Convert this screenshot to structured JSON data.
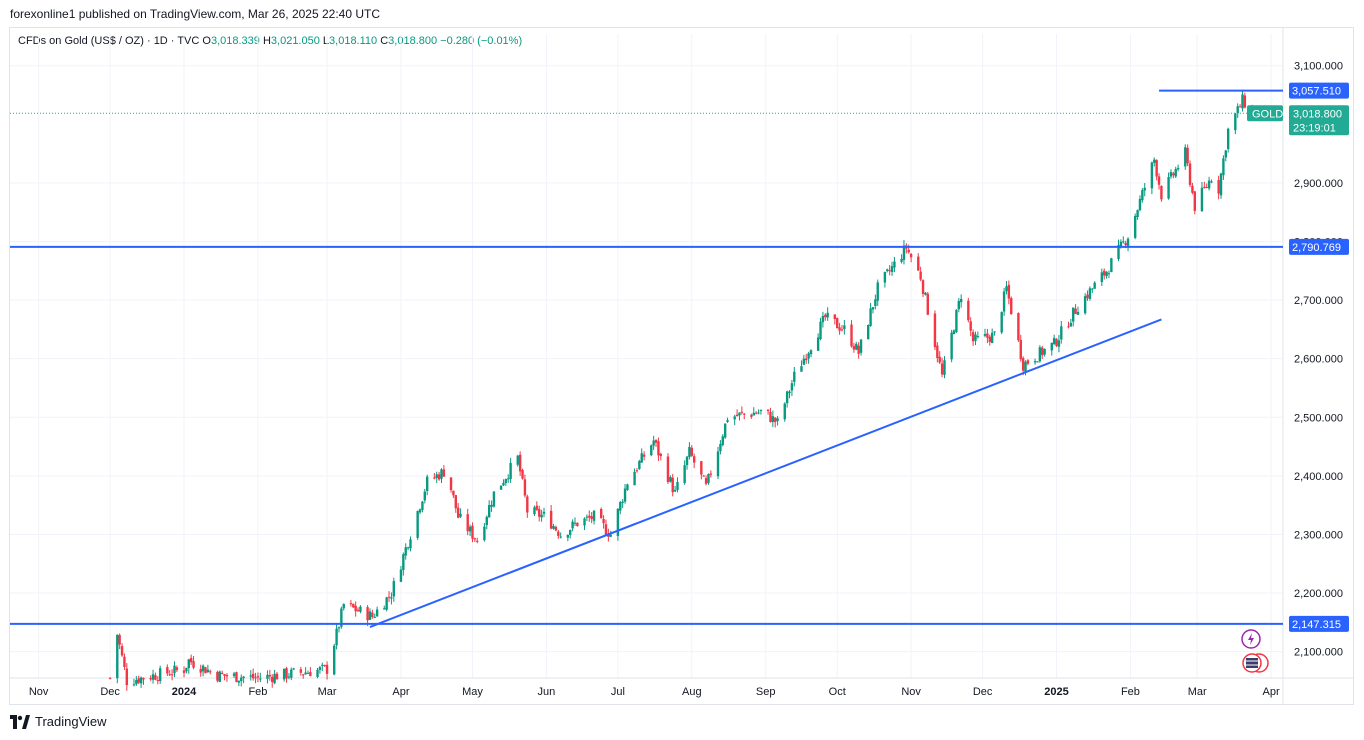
{
  "header": {
    "published": "forexonline1 published on TradingView.com, Mar 26, 2025 22:40 UTC"
  },
  "legend": {
    "symbol": "CFDs on Gold (US$ / OZ) · 1D · TVC",
    "o_label": "O",
    "o": "3,018.339",
    "h_label": "H",
    "h": "3,021.050",
    "l_label": "L",
    "l": "3,018.110",
    "c_label": "C",
    "c": "3,018.800",
    "change": "−0.280 (−0.01%)"
  },
  "footer": {
    "brand": "TradingView",
    "logo_icon": "tradingview-logo-icon"
  },
  "colors": {
    "up": "#089981",
    "down": "#f23645",
    "line": "#2962ff",
    "price_label": "#22ab94"
  },
  "chart_data": {
    "type": "candlestick",
    "symbol": "GOLD",
    "y_ticks": [
      "3,100.000",
      "2,900.000",
      "2,800.000",
      "2,700.000",
      "2,600.000",
      "2,500.000",
      "2,400.000",
      "2,300.000",
      "2,200.000",
      "2,100.000"
    ],
    "y_tick_values": [
      3100,
      2900,
      2800,
      2700,
      2600,
      2500,
      2400,
      2300,
      2200,
      2100
    ],
    "ylim": [
      2055,
      3120
    ],
    "x_ticks": [
      {
        "label": "Nov",
        "date": "2023-11-01",
        "bold": false
      },
      {
        "label": "Dec",
        "date": "2023-12-01",
        "bold": false
      },
      {
        "label": "2024",
        "date": "2024-01-01",
        "bold": true
      },
      {
        "label": "Feb",
        "date": "2024-02-01",
        "bold": false
      },
      {
        "label": "Mar",
        "date": "2024-03-01",
        "bold": false
      },
      {
        "label": "Apr",
        "date": "2024-04-01",
        "bold": false
      },
      {
        "label": "May",
        "date": "2024-05-01",
        "bold": false
      },
      {
        "label": "Jun",
        "date": "2024-06-01",
        "bold": false
      },
      {
        "label": "Jul",
        "date": "2024-07-01",
        "bold": false
      },
      {
        "label": "Aug",
        "date": "2024-08-01",
        "bold": false
      },
      {
        "label": "Sep",
        "date": "2024-09-01",
        "bold": false
      },
      {
        "label": "Oct",
        "date": "2024-10-01",
        "bold": false
      },
      {
        "label": "Nov",
        "date": "2024-11-01",
        "bold": false
      },
      {
        "label": "Dec",
        "date": "2024-12-01",
        "bold": false
      },
      {
        "label": "2025",
        "date": "2025-01-01",
        "bold": true
      },
      {
        "label": "Feb",
        "date": "2025-02-01",
        "bold": false
      },
      {
        "label": "Mar",
        "date": "2025-03-01",
        "bold": false
      },
      {
        "label": "Apr",
        "date": "2025-04-01",
        "bold": false
      }
    ],
    "xlim": [
      "2023-10-20",
      "2025-04-06"
    ],
    "price_path": [
      [
        "2023-12-01",
        2055
      ],
      [
        "2023-12-04",
        2130
      ],
      [
        "2023-12-08",
        2050
      ],
      [
        "2024-01-01",
        2070
      ],
      [
        "2024-01-03",
        2085
      ],
      [
        "2024-01-15",
        2060
      ],
      [
        "2024-02-01",
        2055
      ],
      [
        "2024-03-01",
        2070
      ],
      [
        "2024-03-05",
        2130
      ],
      [
        "2024-03-08",
        2180
      ],
      [
        "2024-03-20",
        2160
      ],
      [
        "2024-03-28",
        2200
      ],
      [
        "2024-04-12",
        2390
      ],
      [
        "2024-04-20",
        2410
      ],
      [
        "2024-04-25",
        2330
      ],
      [
        "2024-05-03",
        2290
      ],
      [
        "2024-05-10",
        2370
      ],
      [
        "2024-05-20",
        2430
      ],
      [
        "2024-05-24",
        2340
      ],
      [
        "2024-06-01",
        2330
      ],
      [
        "2024-06-07",
        2300
      ],
      [
        "2024-06-14",
        2320
      ],
      [
        "2024-06-21",
        2330
      ],
      [
        "2024-06-28",
        2300
      ],
      [
        "2024-07-05",
        2390
      ],
      [
        "2024-07-16",
        2460
      ],
      [
        "2024-07-25",
        2370
      ],
      [
        "2024-07-31",
        2440
      ],
      [
        "2024-08-07",
        2380
      ],
      [
        "2024-08-16",
        2500
      ],
      [
        "2024-08-31",
        2510
      ],
      [
        "2024-09-06",
        2490
      ],
      [
        "2024-09-13",
        2570
      ],
      [
        "2024-09-26",
        2670
      ],
      [
        "2024-10-04",
        2650
      ],
      [
        "2024-10-10",
        2610
      ],
      [
        "2024-10-18",
        2720
      ],
      [
        "2024-10-30",
        2790
      ],
      [
        "2024-11-05",
        2740
      ],
      [
        "2024-11-14",
        2570
      ],
      [
        "2024-11-22",
        2710
      ],
      [
        "2024-11-27",
        2630
      ],
      [
        "2024-12-06",
        2640
      ],
      [
        "2024-12-11",
        2720
      ],
      [
        "2024-12-18",
        2590
      ],
      [
        "2024-12-31",
        2625
      ],
      [
        "2025-01-10",
        2690
      ],
      [
        "2025-01-22",
        2750
      ],
      [
        "2025-01-31",
        2810
      ],
      [
        "2025-02-11",
        2940
      ],
      [
        "2025-02-14",
        2880
      ],
      [
        "2025-02-24",
        2950
      ],
      [
        "2025-02-28",
        2860
      ],
      [
        "2025-03-07",
        2910
      ],
      [
        "2025-03-10",
        2890
      ],
      [
        "2025-03-14",
        2990
      ],
      [
        "2025-03-20",
        3040
      ],
      [
        "2025-03-26",
        3018.8
      ]
    ],
    "horizontal_lines": [
      {
        "value": 3057.51,
        "label": "3,057.510",
        "start": "2025-02-13",
        "end": null
      },
      {
        "value": 2790.769,
        "label": "2,790.769",
        "start": null,
        "end": null
      },
      {
        "value": 2147.315,
        "label": "2,147.315",
        "start": null,
        "end": null
      }
    ],
    "trend_line": {
      "start": [
        "2024-03-19",
        2142
      ],
      "end": [
        "2025-02-14",
        2667
      ]
    },
    "last_price": {
      "symbol": "GOLD",
      "value": 3018.8,
      "label": "3,018.800",
      "countdown": "23:19:01"
    }
  }
}
